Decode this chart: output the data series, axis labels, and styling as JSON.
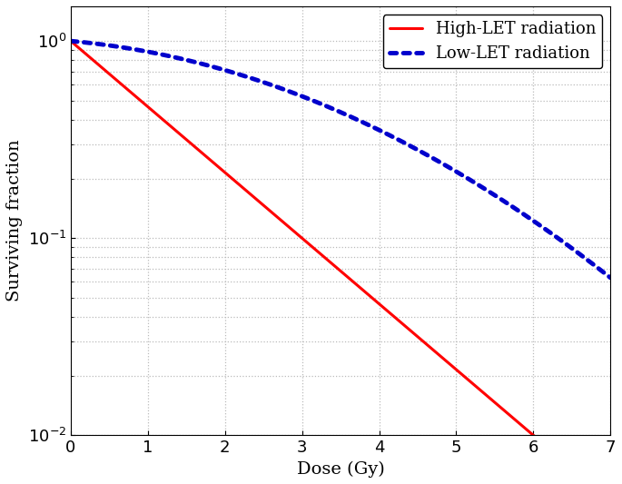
{
  "title": "",
  "xlabel": "Dose (Gy)",
  "ylabel": "Surviving fraction",
  "xlim": [
    0,
    7
  ],
  "ylim": [
    0.01,
    1.5
  ],
  "high_let": {
    "label": "High-LET radiation",
    "color": "#FF0000",
    "linestyle": "solid",
    "linewidth": 2.2,
    "alpha_param": 0.7675,
    "beta_param": 0.0
  },
  "low_let": {
    "label": "Low-LET radiation",
    "color": "#0000CC",
    "linestyle": "dotted",
    "linewidth": 3.5,
    "alpha_param": 0.08,
    "beta_param": 0.045
  },
  "grid_color": "#BBBBBB",
  "background_color": "#FFFFFF",
  "legend_fontsize": 13,
  "axis_fontsize": 14,
  "tick_fontsize": 13
}
